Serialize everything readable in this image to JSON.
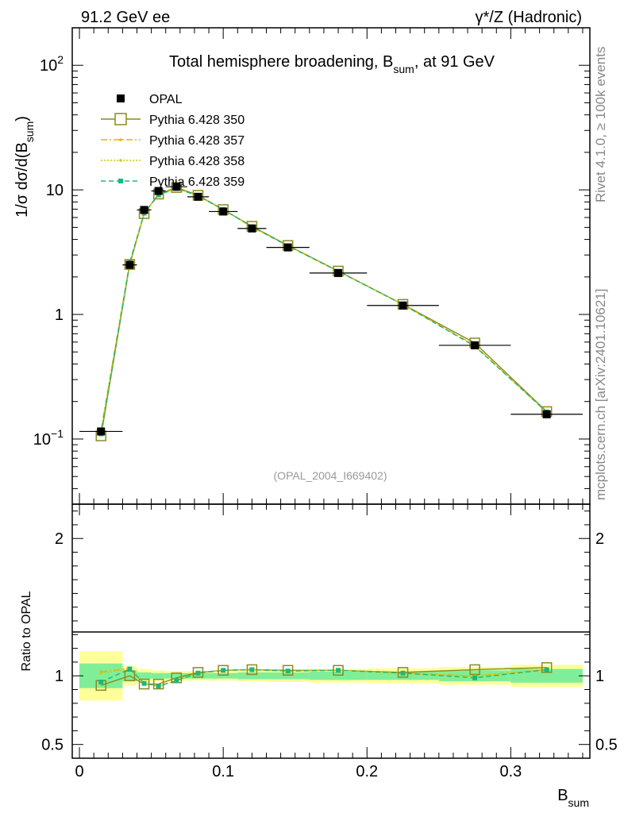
{
  "header": {
    "left": "91.2 GeV ee",
    "right": "γ*/Z (Hadronic)"
  },
  "side_labels": {
    "rivet": "Rivet 4.1.0, ≥ 100k events",
    "mcplots": "mcplots.cern.ch [arXiv:2401.10621]"
  },
  "watermark": "(OPAL_2004_I669402)",
  "chart_data": [
    {
      "panel": "main",
      "type": "line",
      "title": "Total hemisphere broadening, B",
      "title_sub": "sum",
      "title_suffix": ", at 91 GeV",
      "ylabel": "1/σ  dσ/d(B",
      "ylabel_sub": "sum",
      "ylabel_suffix": ")",
      "yscale": "log",
      "ylim": [
        0.03,
        200
      ],
      "xlim": [
        -0.005,
        0.355
      ],
      "ytick_labels": [
        {
          "value": 0.1,
          "base": "10",
          "exp": "−1"
        },
        {
          "value": 1,
          "base": "1",
          "exp": ""
        },
        {
          "value": 10,
          "base": "10",
          "exp": ""
        },
        {
          "value": 100,
          "base": "10",
          "exp": "2"
        }
      ],
      "legend_position": "top-left",
      "x": [
        0.015,
        0.035,
        0.045,
        0.055,
        0.0675,
        0.0825,
        0.1,
        0.12,
        0.145,
        0.18,
        0.225,
        0.275,
        0.325
      ],
      "series": [
        {
          "name": "OPAL",
          "color": "#000000",
          "style": "data",
          "values": [
            0.115,
            2.5,
            6.9,
            9.8,
            10.6,
            8.8,
            6.7,
            4.9,
            3.45,
            2.15,
            1.18,
            0.565,
            0.158
          ],
          "xerr": [
            0.015,
            0.005,
            0.005,
            0.005,
            0.0075,
            0.0075,
            0.01,
            0.01,
            0.015,
            0.02,
            0.025,
            0.025,
            0.025
          ]
        },
        {
          "name": "Pythia 6.428 350",
          "color": "#8a8a1f",
          "style": "solid-open-square",
          "values": [
            0.106,
            2.52,
            6.45,
            9.25,
            10.45,
            9.05,
            6.95,
            5.1,
            3.58,
            2.23,
            1.205,
            0.59,
            0.166
          ]
        },
        {
          "name": "Pythia 6.428 357",
          "color": "#e8b500",
          "style": "dashdot",
          "values": [
            0.118,
            2.62,
            6.48,
            9.15,
            10.3,
            8.95,
            6.95,
            5.05,
            3.55,
            2.22,
            1.2,
            0.565,
            0.164
          ]
        },
        {
          "name": "Pythia 6.428 358",
          "color": "#cccc00",
          "style": "dotted",
          "values": [
            0.117,
            2.6,
            6.47,
            9.1,
            10.3,
            8.95,
            6.92,
            5.05,
            3.55,
            2.22,
            1.2,
            0.56,
            0.164
          ]
        },
        {
          "name": "Pythia 6.428 359",
          "color": "#1ab87a",
          "style": "dashed",
          "values": [
            0.11,
            2.6,
            6.5,
            9.1,
            10.25,
            8.95,
            6.95,
            5.05,
            3.55,
            2.22,
            1.2,
            0.555,
            0.165
          ]
        }
      ]
    },
    {
      "panel": "ratio",
      "type": "line",
      "ylabel": "Ratio to OPAL",
      "xlabel": "B",
      "xlabel_sub": "sum",
      "ylim": [
        0.4,
        2.25
      ],
      "xlim": [
        -0.005,
        0.355
      ],
      "xticks": [
        0,
        0.1,
        0.2,
        0.3
      ],
      "xtick_labels": [
        "0",
        "0.1",
        "0.2",
        "0.3"
      ],
      "yticks": [
        0.5,
        1,
        2
      ],
      "ytick_labels": [
        "0.5",
        "1",
        "2"
      ],
      "bands": {
        "edges": [
          0,
          0.03,
          0.04,
          0.05,
          0.06,
          0.075,
          0.09,
          0.11,
          0.13,
          0.16,
          0.2,
          0.25,
          0.3,
          0.35
        ],
        "stat": [
          0.09,
          0.04,
          0.025,
          0.02,
          0.02,
          0.02,
          0.02,
          0.025,
          0.025,
          0.03,
          0.03,
          0.04,
          0.05
        ],
        "total": [
          0.18,
          0.07,
          0.05,
          0.04,
          0.035,
          0.035,
          0.035,
          0.04,
          0.045,
          0.05,
          0.055,
          0.065,
          0.08
        ]
      },
      "series": [
        {
          "name": "Pythia 6.428 350",
          "color": "#8a8a1f",
          "style": "solid-open-square",
          "values": [
            0.93,
            1.0,
            0.94,
            0.94,
            0.985,
            1.025,
            1.04,
            1.045,
            1.04,
            1.04,
            1.025,
            1.045,
            1.06
          ]
        },
        {
          "name": "Pythia 6.428 357",
          "color": "#e8b500",
          "style": "dashdot",
          "values": [
            1.03,
            1.055,
            0.945,
            0.925,
            0.965,
            1.02,
            1.04,
            1.045,
            1.035,
            1.04,
            1.02,
            1.0,
            1.045
          ]
        },
        {
          "name": "Pythia 6.428 358",
          "color": "#cccc00",
          "style": "dotted",
          "values": [
            1.02,
            1.05,
            0.945,
            0.925,
            0.965,
            1.02,
            1.04,
            1.045,
            1.035,
            1.04,
            1.02,
            0.995,
            1.045
          ]
        },
        {
          "name": "Pythia 6.428 359",
          "color": "#1ab87a",
          "style": "dashed",
          "values": [
            0.955,
            1.05,
            0.945,
            0.925,
            0.965,
            1.02,
            1.04,
            1.045,
            1.035,
            1.04,
            1.02,
            0.985,
            1.045
          ]
        }
      ]
    }
  ]
}
